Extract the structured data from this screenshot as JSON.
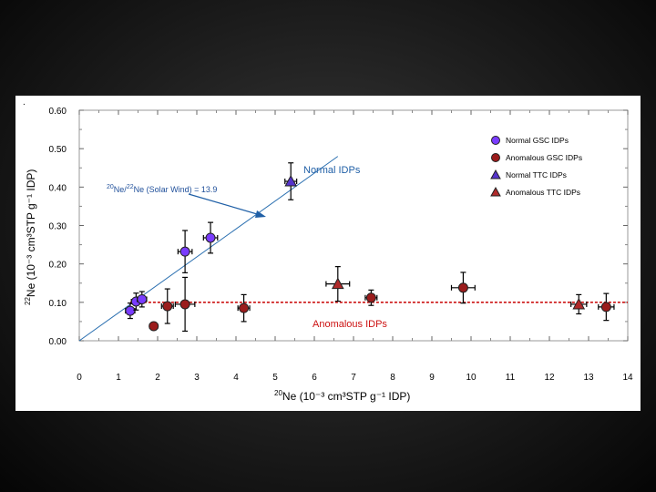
{
  "chart_data": {
    "type": "scatter",
    "xlabel": "Ne (10⁻³ cm³STP g⁻¹ IDP)",
    "xlabel_sup": "20",
    "ylabel": "Ne (10⁻³ cm³STP g⁻¹ IDP)",
    "ylabel_sup": "22",
    "xlim": [
      0,
      14
    ],
    "ylim": [
      0,
      0.6
    ],
    "x_ticks": [
      "0",
      "1",
      "2",
      "3",
      "4",
      "5",
      "6",
      "7",
      "8",
      "9",
      "10",
      "11",
      "12",
      "13",
      "14"
    ],
    "y_ticks": [
      "0.00",
      "0.10",
      "0.20",
      "0.30",
      "0.40",
      "0.50",
      "0.60"
    ],
    "colors": {
      "normal_gsc": "#7a3cff",
      "anomalous_gsc": "#9b1c1c",
      "normal_ttc": "#5533cc",
      "anomalous_ttc": "#b02a2a",
      "fit_line": "#2a6fb0",
      "anomalous_line": "#cc1111"
    },
    "series": [
      {
        "name": "Normal GSC IDPs",
        "marker": "circle",
        "color_key": "normal_gsc",
        "points": [
          {
            "x": 1.3,
            "y": 0.078,
            "xerr": 0.12,
            "yerr": 0.02
          },
          {
            "x": 1.45,
            "y": 0.102,
            "xerr": 0.12,
            "yerr": 0.022
          },
          {
            "x": 1.6,
            "y": 0.108,
            "xerr": 0.12,
            "yerr": 0.02
          },
          {
            "x": 2.7,
            "y": 0.232,
            "xerr": 0.18,
            "yerr": 0.055
          },
          {
            "x": 3.35,
            "y": 0.268,
            "xerr": 0.18,
            "yerr": 0.04
          }
        ]
      },
      {
        "name": "Anomalous GSC IDPs",
        "marker": "circle",
        "color_key": "anomalous_gsc",
        "points": [
          {
            "x": 1.9,
            "y": 0.038,
            "xerr": 0.1,
            "yerr": 0.0
          },
          {
            "x": 2.25,
            "y": 0.09,
            "xerr": 0.15,
            "yerr": 0.045
          },
          {
            "x": 2.7,
            "y": 0.095,
            "xerr": 0.25,
            "yerr": 0.07
          },
          {
            "x": 4.2,
            "y": 0.085,
            "xerr": 0.15,
            "yerr": 0.035
          },
          {
            "x": 7.45,
            "y": 0.112,
            "xerr": 0.15,
            "yerr": 0.02
          },
          {
            "x": 9.8,
            "y": 0.138,
            "xerr": 0.3,
            "yerr": 0.04
          },
          {
            "x": 13.45,
            "y": 0.088,
            "xerr": 0.2,
            "yerr": 0.035
          }
        ]
      },
      {
        "name": "Normal TTC IDPs",
        "marker": "triangle",
        "color_key": "normal_ttc",
        "points": [
          {
            "x": 5.4,
            "y": 0.415,
            "xerr": 0.15,
            "yerr": 0.048
          }
        ]
      },
      {
        "name": "Anomalous TTC IDPs",
        "marker": "triangle",
        "color_key": "anomalous_ttc",
        "points": [
          {
            "x": 6.6,
            "y": 0.148,
            "xerr": 0.3,
            "yerr": 0.045
          },
          {
            "x": 12.75,
            "y": 0.095,
            "xerr": 0.2,
            "yerr": 0.025
          }
        ]
      }
    ],
    "fit_line": {
      "x0": 0,
      "y0": 0,
      "x1": 6.6,
      "y1": 0.48
    },
    "anomalous_line": {
      "y": 0.1,
      "x0": 1.3,
      "x1": 14
    },
    "annotations": {
      "normal_idps": "Normal IDPs",
      "anomalous_idps": "Anomalous IDPs",
      "solar_wind_sup1": "20",
      "solar_wind_mid": "Ne/",
      "solar_wind_sup2": "22",
      "solar_wind_rest": "Ne (Solar Wind) = 13.9"
    },
    "legend_position": "top-right"
  },
  "panel_mark": "."
}
